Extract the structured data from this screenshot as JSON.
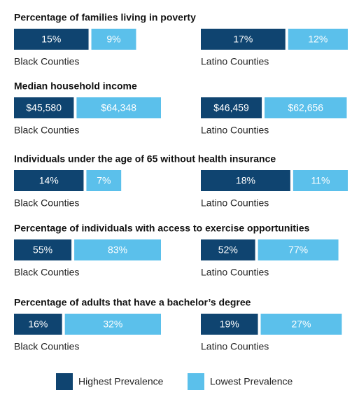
{
  "legend": [
    {
      "name": "Highest Prevalence",
      "color": "#0f4470"
    },
    {
      "name": "Lowest Prevalence",
      "color": "#5bc0eb"
    }
  ],
  "chart_data": [
    {
      "type": "bar",
      "title": "Percentage of families living in poverty",
      "categories": [
        "Black Counties",
        "Latino Counties"
      ],
      "series": [
        {
          "values": [
            15,
            17
          ],
          "value_labels": [
            "15%",
            "17%"
          ]
        },
        {
          "values": [
            9,
            12
          ],
          "value_labels": [
            "9%",
            "12%"
          ]
        }
      ]
    },
    {
      "type": "bar",
      "title": "Median household income",
      "categories": [
        "Black Counties",
        "Latino Counties"
      ],
      "series": [
        {
          "values": [
            45580,
            46459
          ],
          "value_labels": [
            "$45,580",
            "$46,459"
          ]
        },
        {
          "values": [
            64348,
            62656
          ],
          "value_labels": [
            "$64,348",
            "$62,656"
          ]
        }
      ]
    },
    {
      "type": "bar",
      "title": "Individuals under the age of 65 without health insurance",
      "categories": [
        "Black Counties",
        "Latino Counties"
      ],
      "series": [
        {
          "values": [
            14,
            18
          ],
          "value_labels": [
            "14%",
            "18%"
          ]
        },
        {
          "values": [
            7,
            11
          ],
          "value_labels": [
            "7%",
            "11%"
          ]
        }
      ]
    },
    {
      "type": "bar",
      "title": "Percentage of individuals with access to exercise opportunities",
      "categories": [
        "Black Counties",
        "Latino Counties"
      ],
      "series": [
        {
          "values": [
            55,
            52
          ],
          "value_labels": [
            "55%",
            "52%"
          ]
        },
        {
          "values": [
            83,
            77
          ],
          "value_labels": [
            "83%",
            "77%"
          ]
        }
      ]
    },
    {
      "type": "bar",
      "title": "Percentage of adults that have a bachelor’s degree",
      "categories": [
        "Black Counties",
        "Latino Counties"
      ],
      "series": [
        {
          "values": [
            16,
            19
          ],
          "value_labels": [
            "16%",
            "19%"
          ]
        },
        {
          "values": [
            32,
            27
          ],
          "value_labels": [
            "32%",
            "27%"
          ]
        }
      ]
    }
  ]
}
